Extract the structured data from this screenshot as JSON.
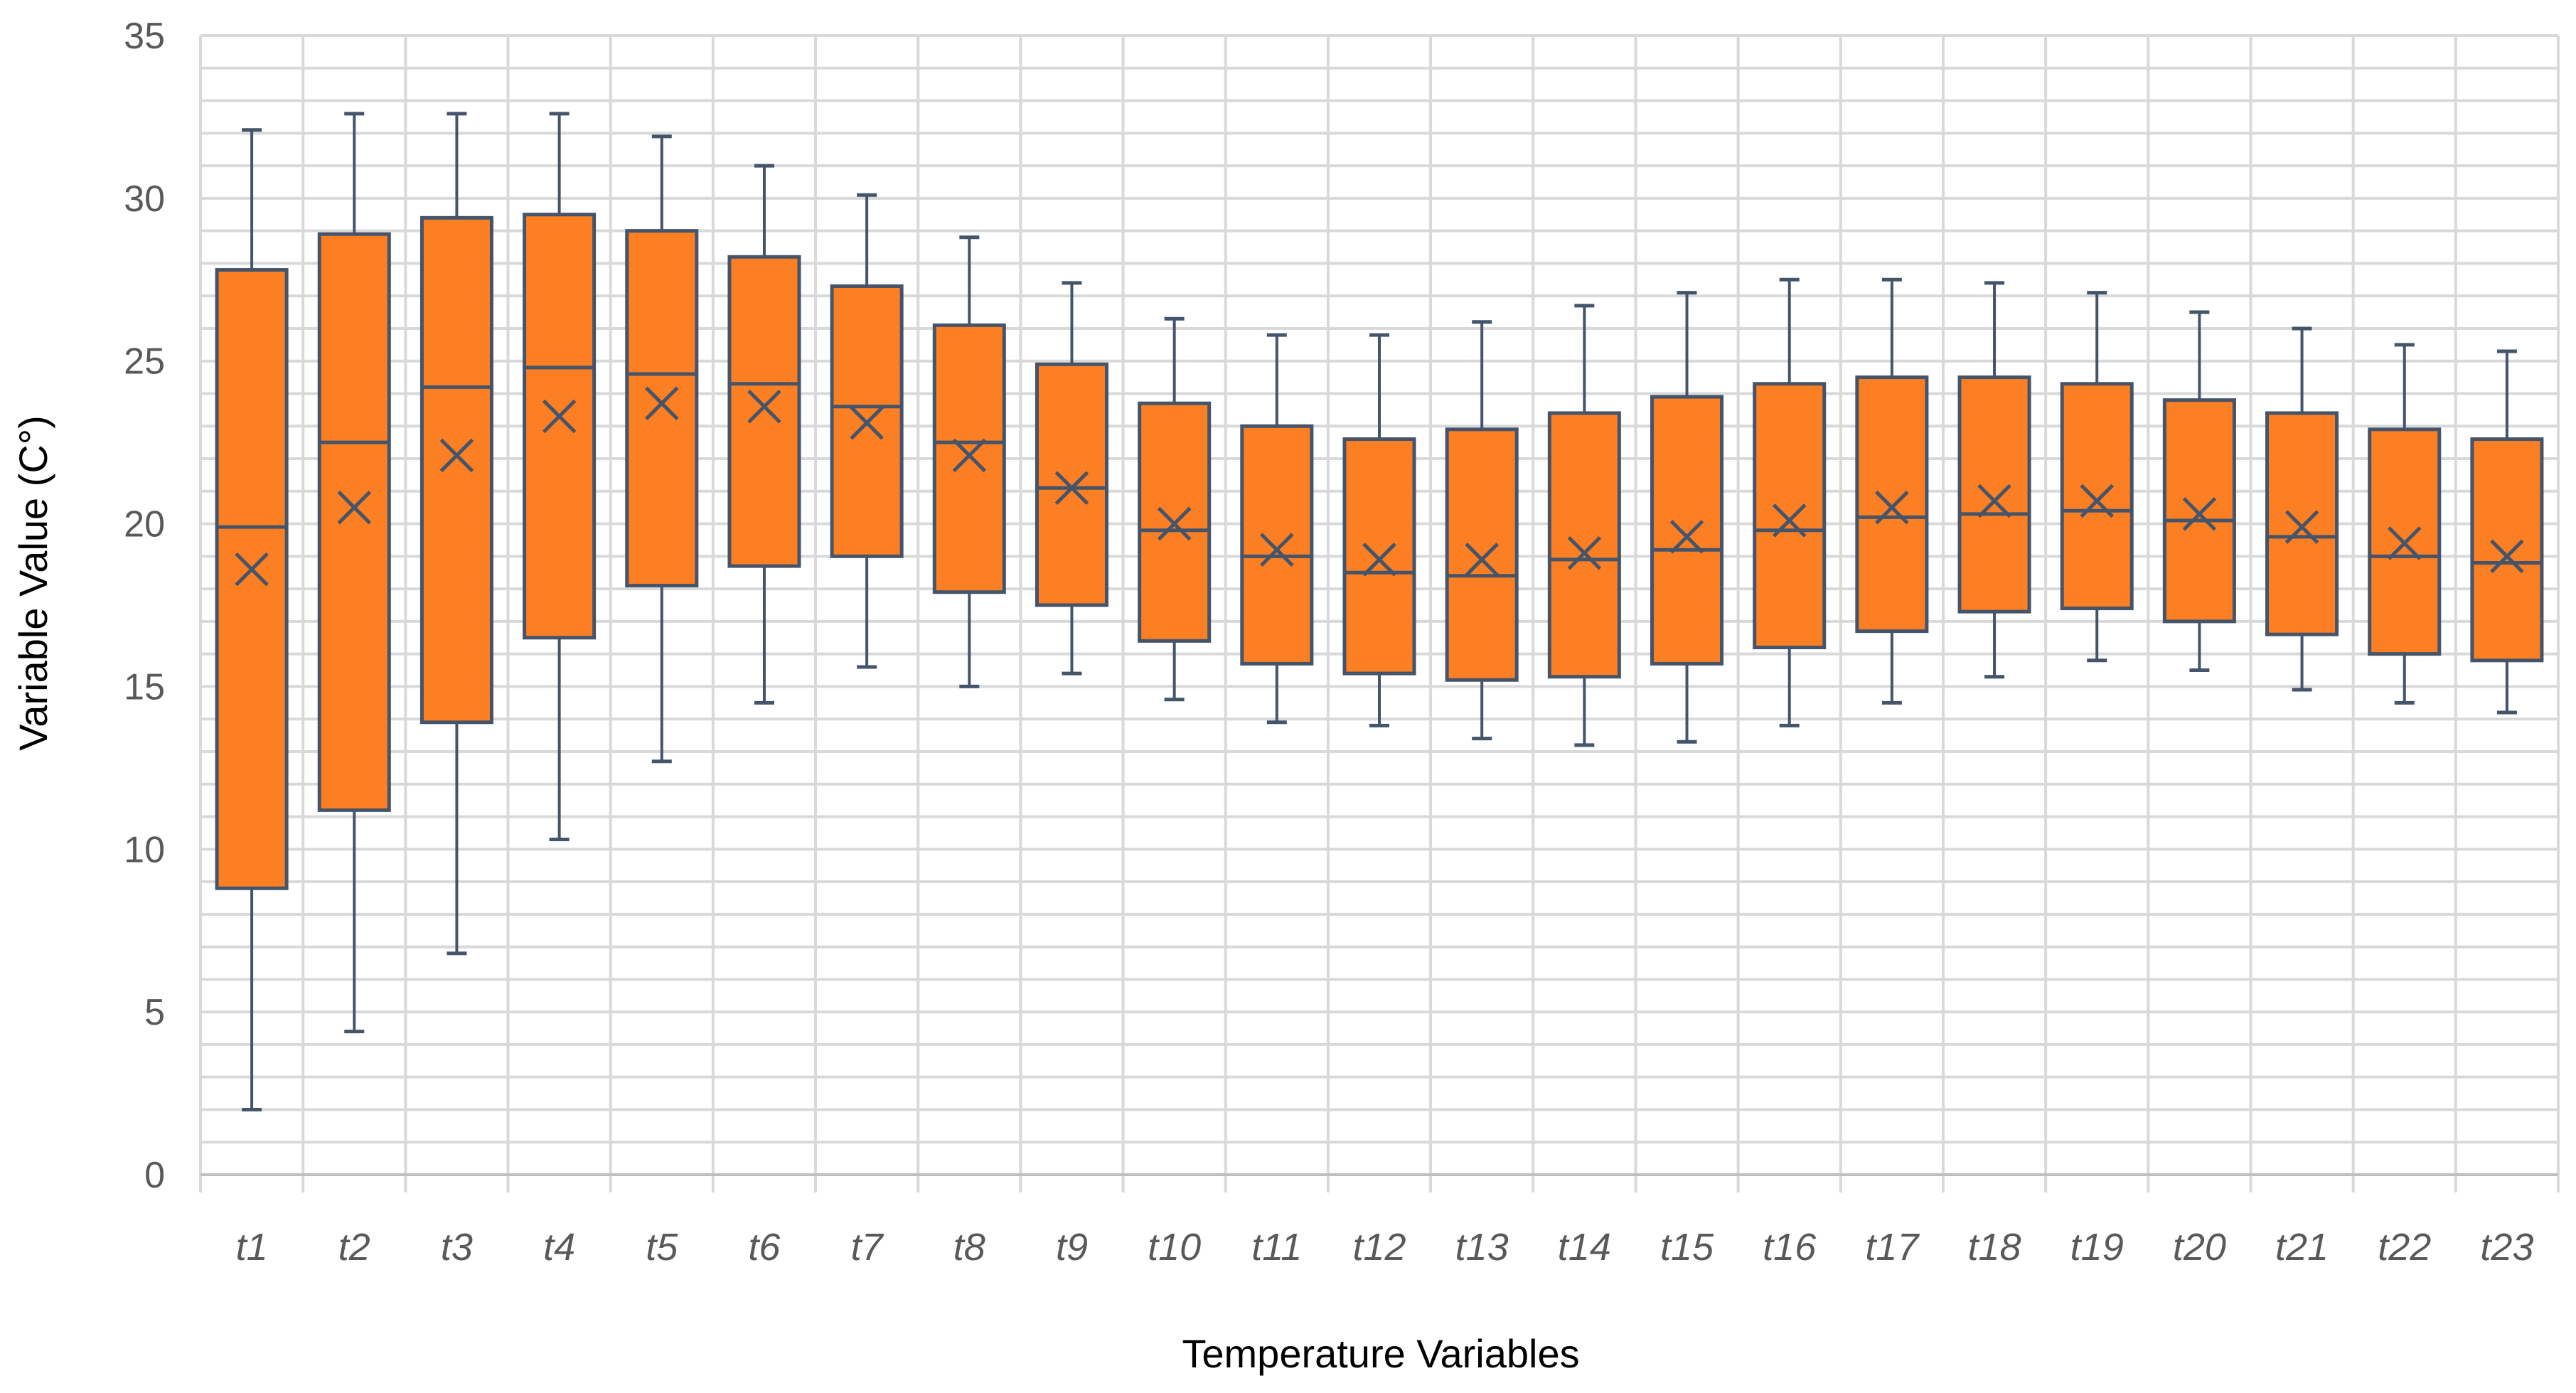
{
  "chart_data": {
    "type": "box",
    "xlabel": "Temperature Variables",
    "ylabel": "Variable Value (C°)",
    "ylim": [
      0,
      35
    ],
    "yticks": [
      0,
      5,
      10,
      15,
      20,
      25,
      30,
      35
    ],
    "grid": true,
    "colors": {
      "box_fill": "#FD7F23",
      "box_stroke": "#44546A",
      "grid": "#D9D9D9"
    },
    "categories": [
      "t1",
      "t2",
      "t3",
      "t4",
      "t5",
      "t6",
      "t7",
      "t8",
      "t9",
      "t10",
      "t11",
      "t12",
      "t13",
      "t14",
      "t15",
      "t16",
      "t17",
      "t18",
      "t19",
      "t20",
      "t21",
      "t22",
      "t23"
    ],
    "boxes": [
      {
        "min": 2.0,
        "q1": 8.8,
        "median": 19.9,
        "q3": 27.8,
        "max": 32.1,
        "mean": 18.6
      },
      {
        "min": 4.4,
        "q1": 11.2,
        "median": 22.5,
        "q3": 28.9,
        "max": 32.6,
        "mean": 20.5
      },
      {
        "min": 6.8,
        "q1": 13.9,
        "median": 24.2,
        "q3": 29.4,
        "max": 32.6,
        "mean": 22.1
      },
      {
        "min": 10.3,
        "q1": 16.5,
        "median": 24.8,
        "q3": 29.5,
        "max": 32.6,
        "mean": 23.3
      },
      {
        "min": 12.7,
        "q1": 18.1,
        "median": 24.6,
        "q3": 29.0,
        "max": 31.9,
        "mean": 23.7
      },
      {
        "min": 14.5,
        "q1": 18.7,
        "median": 24.3,
        "q3": 28.2,
        "max": 31.0,
        "mean": 23.6
      },
      {
        "min": 15.6,
        "q1": 19.0,
        "median": 23.6,
        "q3": 27.3,
        "max": 30.1,
        "mean": 23.1
      },
      {
        "min": 15.0,
        "q1": 17.9,
        "median": 22.5,
        "q3": 26.1,
        "max": 28.8,
        "mean": 22.1
      },
      {
        "min": 15.4,
        "q1": 17.5,
        "median": 21.1,
        "q3": 24.9,
        "max": 27.4,
        "mean": 21.1
      },
      {
        "min": 14.6,
        "q1": 16.4,
        "median": 19.8,
        "q3": 23.7,
        "max": 26.3,
        "mean": 20.0
      },
      {
        "min": 13.9,
        "q1": 15.7,
        "median": 19.0,
        "q3": 23.0,
        "max": 25.8,
        "mean": 19.2
      },
      {
        "min": 13.8,
        "q1": 15.4,
        "median": 18.5,
        "q3": 22.6,
        "max": 25.8,
        "mean": 18.9
      },
      {
        "min": 13.4,
        "q1": 15.2,
        "median": 18.4,
        "q3": 22.9,
        "max": 26.2,
        "mean": 18.9
      },
      {
        "min": 13.2,
        "q1": 15.3,
        "median": 18.9,
        "q3": 23.4,
        "max": 26.7,
        "mean": 19.1
      },
      {
        "min": 13.3,
        "q1": 15.7,
        "median": 19.2,
        "q3": 23.9,
        "max": 27.1,
        "mean": 19.6
      },
      {
        "min": 13.8,
        "q1": 16.2,
        "median": 19.8,
        "q3": 24.3,
        "max": 27.5,
        "mean": 20.1
      },
      {
        "min": 14.5,
        "q1": 16.7,
        "median": 20.2,
        "q3": 24.5,
        "max": 27.5,
        "mean": 20.5
      },
      {
        "min": 15.3,
        "q1": 17.3,
        "median": 20.3,
        "q3": 24.5,
        "max": 27.4,
        "mean": 20.7
      },
      {
        "min": 15.8,
        "q1": 17.4,
        "median": 20.4,
        "q3": 24.3,
        "max": 27.1,
        "mean": 20.7
      },
      {
        "min": 15.5,
        "q1": 17.0,
        "median": 20.1,
        "q3": 23.8,
        "max": 26.5,
        "mean": 20.3
      },
      {
        "min": 14.9,
        "q1": 16.6,
        "median": 19.6,
        "q3": 23.4,
        "max": 26.0,
        "mean": 19.9
      },
      {
        "min": 14.5,
        "q1": 16.0,
        "median": 19.0,
        "q3": 22.9,
        "max": 25.5,
        "mean": 19.4
      },
      {
        "min": 14.2,
        "q1": 15.8,
        "median": 18.8,
        "q3": 22.6,
        "max": 25.3,
        "mean": 19.0
      }
    ]
  }
}
